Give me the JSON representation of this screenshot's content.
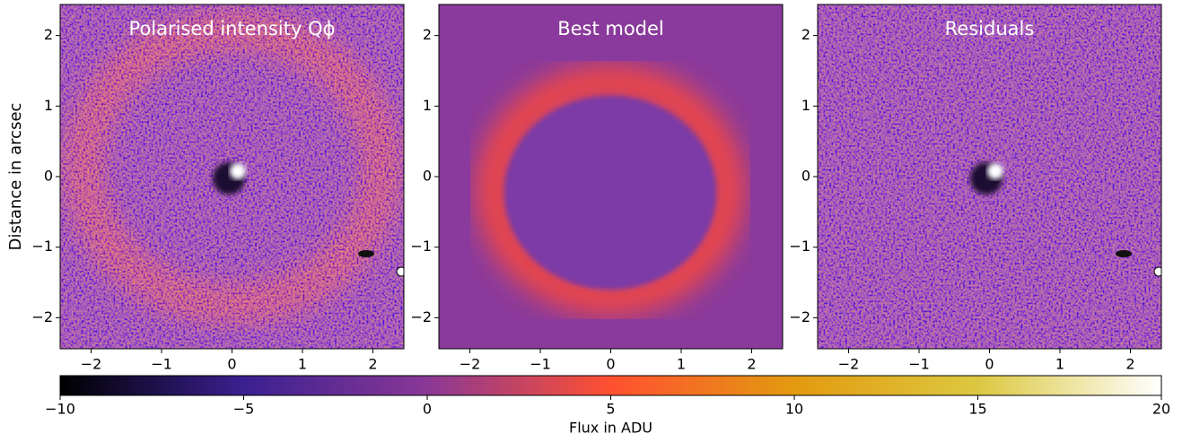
{
  "chart_data": [
    {
      "type": "image",
      "title": "Polarised intensity Qϕ",
      "ylabel": "Distance in arcsec",
      "xlim": [
        -2.44,
        2.44
      ],
      "ylim": [
        -2.44,
        2.44
      ],
      "xticks": [
        {
          "value": -2,
          "label": "−2"
        },
        {
          "value": -1,
          "label": "−1"
        },
        0,
        1,
        2
      ],
      "yticks": [
        {
          "value": -2,
          "label": "−2"
        },
        {
          "value": -1,
          "label": "−1"
        },
        0,
        1,
        2
      ]
    },
    {
      "type": "image",
      "title": "Best model",
      "xlim": [
        -2.44,
        2.44
      ],
      "ylim": [
        -2.44,
        2.44
      ],
      "xticks": [
        {
          "value": -2,
          "label": "−2"
        },
        {
          "value": -1,
          "label": "−1"
        },
        0,
        1,
        2
      ],
      "yticks": [
        {
          "value": -2,
          "label": "−2"
        },
        {
          "value": -1,
          "label": "−1"
        },
        0,
        1,
        2
      ]
    },
    {
      "type": "image",
      "title": "Residuals",
      "xlim": [
        -2.44,
        2.44
      ],
      "ylim": [
        -2.44,
        2.44
      ],
      "xticks": [
        {
          "value": -2,
          "label": "−2"
        },
        {
          "value": -1,
          "label": "−1"
        },
        0,
        1,
        2
      ],
      "yticks": [
        {
          "value": -2,
          "label": "−2"
        },
        {
          "value": -1,
          "label": "−1"
        },
        0,
        1,
        2
      ]
    },
    {
      "type": "colorbar",
      "label": "Flux in ADU",
      "clim": [
        -10,
        20
      ],
      "ticks": [
        {
          "value": -10,
          "label": "−10"
        },
        {
          "value": -5,
          "label": "−5"
        },
        0,
        5,
        10,
        15,
        20
      ],
      "colors": [
        "#000000",
        "#3a2090",
        "#8a3896",
        "#ff5030",
        "#e39a10",
        "#dcc840",
        "#ffffff"
      ]
    }
  ]
}
